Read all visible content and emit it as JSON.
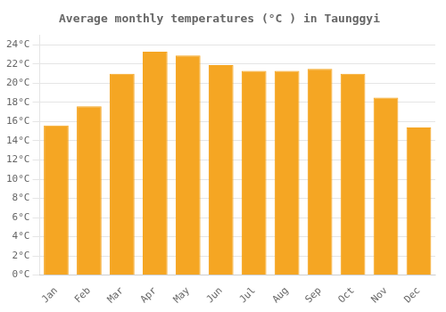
{
  "chart_data": {
    "type": "bar",
    "title": "Average monthly temperatures (°C ) in Taunggyi",
    "categories": [
      "Jan",
      "Feb",
      "Mar",
      "Apr",
      "May",
      "Jun",
      "Jul",
      "Aug",
      "Sep",
      "Oct",
      "Nov",
      "Dec"
    ],
    "values": [
      15.6,
      17.6,
      21.0,
      23.3,
      22.9,
      21.9,
      21.3,
      21.3,
      21.5,
      21.0,
      18.5,
      15.4
    ],
    "color": "#F5A623",
    "ylim": [
      0,
      25
    ],
    "yticks": [
      {
        "value": 0,
        "label": "0°C"
      },
      {
        "value": 2,
        "label": "2°C"
      },
      {
        "value": 4,
        "label": "4°C"
      },
      {
        "value": 6,
        "label": "6°C"
      },
      {
        "value": 8,
        "label": "8°C"
      },
      {
        "value": 10,
        "label": "10°C"
      },
      {
        "value": 12,
        "label": "12°C"
      },
      {
        "value": 14,
        "label": "14°C"
      },
      {
        "value": 16,
        "label": "16°C"
      },
      {
        "value": 18,
        "label": "18°C"
      },
      {
        "value": 20,
        "label": "20°C"
      },
      {
        "value": 22,
        "label": "22°C"
      },
      {
        "value": 24,
        "label": "24°C"
      }
    ],
    "grid": true
  }
}
